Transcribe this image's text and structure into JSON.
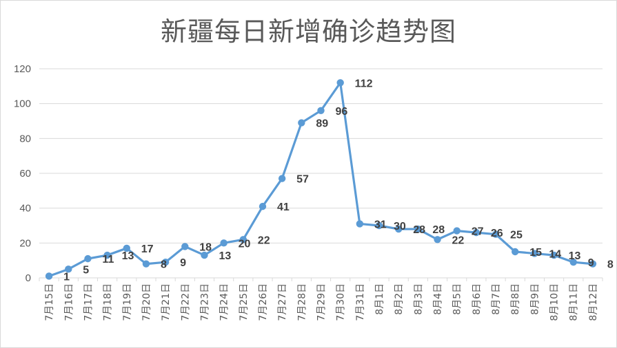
{
  "chart_data": {
    "type": "line",
    "title": "新疆每日新增确诊趋势图",
    "categories": [
      "7月15日",
      "7月16日",
      "7月17日",
      "7月18日",
      "7月19日",
      "7月20日",
      "7月21日",
      "7月22日",
      "7月23日",
      "7月24日",
      "7月25日",
      "7月26日",
      "7月27日",
      "7月28日",
      "7月29日",
      "7月30日",
      "7月31日",
      "8月1日",
      "8月2日",
      "8月3日",
      "8月4日",
      "8月5日",
      "8月6日",
      "8月7日",
      "8月8日",
      "8月9日",
      "8月10日",
      "8月11日",
      "8月12日"
    ],
    "series": [
      {
        "values": [
          1,
          5,
          11,
          13,
          17,
          8,
          9,
          18,
          13,
          20,
          22,
          41,
          57,
          89,
          96,
          112,
          31,
          30,
          28,
          28,
          22,
          27,
          26,
          25,
          15,
          14,
          13,
          9,
          8
        ]
      }
    ],
    "data_labels": [
      "1",
      "5",
      "11",
      "13",
      "17",
      "8",
      "9",
      "18",
      "13",
      "20",
      "22",
      "41",
      "57",
      "89",
      "96",
      "112",
      "31",
      "30",
      "28",
      "28",
      "22",
      "27",
      "26",
      "25",
      "15",
      "14",
      "13",
      "9",
      "8"
    ],
    "yticks": [
      0,
      20,
      40,
      60,
      80,
      100,
      120
    ],
    "ylim": [
      0,
      120
    ],
    "grid": true,
    "legend": "none",
    "line_color": "#5b9bd5"
  }
}
